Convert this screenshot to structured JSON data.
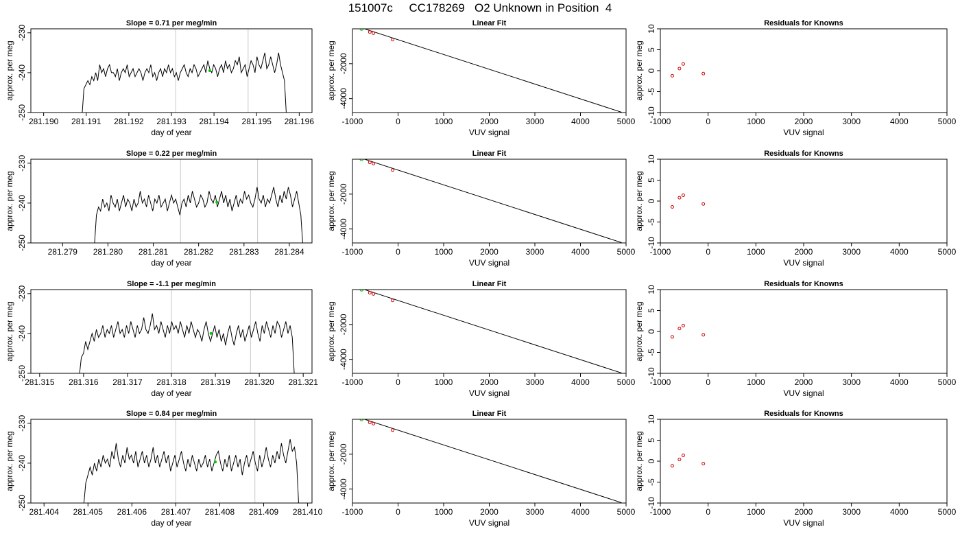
{
  "title": "151007c     CC178269   O2 Unknown in Position  4",
  "chart_data": [
    {
      "type": "line",
      "title": "Slope =  0.71  per meg/min",
      "xlabel": "day of year",
      "ylabel": "approx. per meg",
      "xlim": [
        281.1897,
        281.1963
      ],
      "ylim": [
        -250,
        -229
      ],
      "x_ticks": [
        "281.190",
        "281.191",
        "281.192",
        "281.193",
        "281.194",
        "281.195",
        "281.196"
      ],
      "y_ticks": [
        "-250",
        "-240",
        "-230"
      ],
      "x_start": 281.1909,
      "x_end": 281.1957,
      "vertical_lines": [
        281.1931,
        281.1948
      ],
      "marker": {
        "x": 281.1939,
        "y": -239.5,
        "color": "#00cc00"
      },
      "line_color": "#000000",
      "y": [
        -251,
        -244,
        -243,
        -242,
        -243,
        -241,
        -242,
        -240,
        -242,
        -238,
        -240,
        -239,
        -241,
        -239,
        -238,
        -240,
        -240,
        -241,
        -239,
        -242,
        -240,
        -239,
        -240,
        -238,
        -241,
        -240,
        -239,
        -241,
        -240,
        -239,
        -240,
        -242,
        -240,
        -239,
        -240,
        -238,
        -241,
        -240,
        -242,
        -240,
        -239,
        -241,
        -239,
        -240,
        -238,
        -240,
        -239,
        -241,
        -240,
        -242,
        -240,
        -239,
        -238,
        -240,
        -241,
        -239,
        -240,
        -238,
        -239,
        -241,
        -240,
        -239,
        -238,
        -240,
        -237,
        -239,
        -240,
        -238,
        -239,
        -241,
        -239,
        -238,
        -240,
        -237,
        -239,
        -238,
        -240,
        -239,
        -237,
        -238,
        -236,
        -240,
        -239,
        -238,
        -241,
        -239,
        -237,
        -238,
        -240,
        -236,
        -238,
        -239,
        -237,
        -235,
        -239,
        -238,
        -236,
        -238,
        -240,
        -238,
        -235,
        -238,
        -240,
        -242,
        -251
      ]
    },
    {
      "type": "line",
      "title": "Linear Fit",
      "xlabel": "VUV signal",
      "ylabel": "approx. per meg",
      "xlim": [
        -1000,
        5000
      ],
      "ylim": [
        -4800,
        0
      ],
      "x_ticks": [
        "-1000",
        "0",
        "1000",
        "2000",
        "3000",
        "4000",
        "5000"
      ],
      "y_ticks": [
        "-4000",
        "-2000"
      ],
      "fit_line": [
        [
          -830,
          80
        ],
        [
          4900,
          -4780
        ]
      ],
      "known_points": [
        [
          -620,
          -180
        ],
        [
          -540,
          -250
        ],
        [
          -120,
          -620
        ]
      ],
      "known_color": "#cc0000",
      "unknown_point": [
        -800,
        0
      ],
      "unknown_color": "#00cc00"
    },
    {
      "type": "scatter",
      "title": "Residuals for Knowns",
      "xlabel": "VUV signal",
      "ylabel": "approx. per meg",
      "xlim": [
        -1000,
        5000
      ],
      "ylim": [
        -10,
        10
      ],
      "x_ticks": [
        "-1000",
        "0",
        "1000",
        "2000",
        "3000",
        "4000",
        "5000"
      ],
      "y_ticks": [
        "-10",
        "-5",
        "0",
        "5",
        "10"
      ],
      "points": [
        [
          -750,
          -1.2
        ],
        [
          -600,
          0.5
        ],
        [
          -520,
          1.6
        ],
        [
          -100,
          -0.7
        ]
      ],
      "point_color": "#cc0000"
    },
    {
      "type": "line",
      "title": "Slope =  0.22  per meg/min",
      "xlabel": "day of year",
      "ylabel": "approx. per meg",
      "xlim": [
        281.2783,
        281.2845
      ],
      "ylim": [
        -250,
        -229
      ],
      "x_ticks": [
        "281.279",
        "281.280",
        "281.281",
        "281.282",
        "281.283",
        "281.284"
      ],
      "y_ticks": [
        "-250",
        "-240",
        "-230"
      ],
      "x_start": 281.2797,
      "x_end": 281.2843,
      "vertical_lines": [
        281.2816,
        281.2833
      ],
      "marker": {
        "x": 281.2824,
        "y": -239.8,
        "color": "#00cc00"
      },
      "line_color": "#000000",
      "y": [
        -251,
        -243,
        -241,
        -242,
        -239,
        -241,
        -240,
        -242,
        -238,
        -240,
        -241,
        -239,
        -242,
        -240,
        -238,
        -241,
        -239,
        -240,
        -242,
        -239,
        -241,
        -240,
        -237,
        -240,
        -239,
        -241,
        -238,
        -240,
        -242,
        -239,
        -240,
        -238,
        -241,
        -240,
        -239,
        -242,
        -240,
        -238,
        -240,
        -239,
        -241,
        -243,
        -240,
        -239,
        -241,
        -238,
        -240,
        -237,
        -239,
        -241,
        -240,
        -238,
        -239,
        -241,
        -240,
        -237,
        -239,
        -240,
        -238,
        -241,
        -239,
        -237,
        -240,
        -238,
        -241,
        -239,
        -242,
        -240,
        -238,
        -241,
        -239,
        -240,
        -237,
        -239,
        -238,
        -240,
        -241,
        -239,
        -236,
        -239,
        -240,
        -238,
        -241,
        -239,
        -240,
        -238,
        -236,
        -239,
        -241,
        -238,
        -240,
        -237,
        -239,
        -236,
        -238,
        -241,
        -239,
        -237,
        -240,
        -243,
        -251
      ]
    },
    {
      "type": "line",
      "title": "Linear Fit",
      "xlabel": "VUV signal",
      "ylabel": "approx. per meg",
      "xlim": [
        -1000,
        5000
      ],
      "ylim": [
        -4800,
        0
      ],
      "x_ticks": [
        "-1000",
        "0",
        "1000",
        "2000",
        "3000",
        "4000",
        "5000"
      ],
      "y_ticks": [
        "-4000",
        "-2000"
      ],
      "fit_line": [
        [
          -830,
          80
        ],
        [
          4900,
          -4780
        ]
      ],
      "known_points": [
        [
          -620,
          -180
        ],
        [
          -540,
          -250
        ],
        [
          -120,
          -620
        ]
      ],
      "known_color": "#cc0000",
      "unknown_point": [
        -800,
        0
      ],
      "unknown_color": "#00cc00"
    },
    {
      "type": "scatter",
      "title": "Residuals for Knowns",
      "xlabel": "VUV signal",
      "ylabel": "approx. per meg",
      "xlim": [
        -1000,
        5000
      ],
      "ylim": [
        -10,
        10
      ],
      "x_ticks": [
        "-1000",
        "0",
        "1000",
        "2000",
        "3000",
        "4000",
        "5000"
      ],
      "y_ticks": [
        "-10",
        "-5",
        "0",
        "5",
        "10"
      ],
      "points": [
        [
          -750,
          -1.4
        ],
        [
          -600,
          0.8
        ],
        [
          -520,
          1.4
        ],
        [
          -100,
          -0.7
        ]
      ],
      "point_color": "#cc0000"
    },
    {
      "type": "line",
      "title": "Slope =  -1.1  per meg/min",
      "xlabel": "day of year",
      "ylabel": "approx. per meg",
      "xlim": [
        281.3148,
        281.3212
      ],
      "ylim": [
        -250,
        -229
      ],
      "x_ticks": [
        "281.315",
        "281.316",
        "281.317",
        "281.318",
        "281.319",
        "281.320",
        "281.321"
      ],
      "y_ticks": [
        "-250",
        "-240",
        "-230"
      ],
      "x_start": 281.3159,
      "x_end": 281.3208,
      "vertical_lines": [
        281.318,
        281.3198
      ],
      "marker": {
        "x": 281.3189,
        "y": -240,
        "color": "#00cc00"
      },
      "line_color": "#000000",
      "y": [
        -251,
        -246,
        -245,
        -242,
        -244,
        -242,
        -240,
        -242,
        -239,
        -241,
        -240,
        -238,
        -241,
        -239,
        -240,
        -238,
        -241,
        -239,
        -237,
        -240,
        -239,
        -241,
        -238,
        -240,
        -237,
        -239,
        -241,
        -238,
        -240,
        -239,
        -236,
        -239,
        -240,
        -238,
        -235,
        -239,
        -238,
        -240,
        -237,
        -239,
        -241,
        -238,
        -240,
        -237,
        -239,
        -238,
        -240,
        -237,
        -239,
        -241,
        -238,
        -240,
        -237,
        -239,
        -241,
        -239,
        -240,
        -242,
        -239,
        -237,
        -240,
        -242,
        -240,
        -238,
        -241,
        -239,
        -242,
        -240,
        -243,
        -240,
        -238,
        -241,
        -243,
        -240,
        -238,
        -241,
        -239,
        -242,
        -240,
        -238,
        -241,
        -239,
        -237,
        -240,
        -242,
        -238,
        -240,
        -237,
        -239,
        -241,
        -238,
        -240,
        -237,
        -238,
        -241,
        -239,
        -237,
        -240,
        -238,
        -241,
        -251
      ]
    },
    {
      "type": "line",
      "title": "Linear Fit",
      "xlabel": "VUV signal",
      "ylabel": "approx. per meg",
      "xlim": [
        -1000,
        5000
      ],
      "ylim": [
        -4800,
        0
      ],
      "x_ticks": [
        "-1000",
        "0",
        "1000",
        "2000",
        "3000",
        "4000",
        "5000"
      ],
      "y_ticks": [
        "-4000",
        "-2000"
      ],
      "fit_line": [
        [
          -830,
          80
        ],
        [
          4900,
          -4780
        ]
      ],
      "known_points": [
        [
          -620,
          -180
        ],
        [
          -540,
          -250
        ],
        [
          -120,
          -620
        ]
      ],
      "known_color": "#cc0000",
      "unknown_point": [
        -800,
        0
      ],
      "unknown_color": "#00cc00"
    },
    {
      "type": "scatter",
      "title": "Residuals for Knowns",
      "xlabel": "VUV signal",
      "ylabel": "approx. per meg",
      "xlim": [
        -1000,
        5000
      ],
      "ylim": [
        -10,
        10
      ],
      "points": [
        [
          -750,
          -1.3
        ],
        [
          -600,
          0.7
        ],
        [
          -520,
          1.4
        ],
        [
          -100,
          -0.8
        ]
      ],
      "x_ticks": [
        "-1000",
        "0",
        "1000",
        "2000",
        "3000",
        "4000",
        "5000"
      ],
      "y_ticks": [
        "-10",
        "-5",
        "0",
        "5",
        "10"
      ],
      "point_color": "#cc0000"
    },
    {
      "type": "line",
      "title": "Slope =  0.84  per meg/min",
      "xlabel": "day of year",
      "ylabel": "approx. per meg",
      "xlim": [
        281.4037,
        281.4101
      ],
      "ylim": [
        -250,
        -229
      ],
      "x_ticks": [
        "281.404",
        "281.405",
        "281.406",
        "281.407",
        "281.408",
        "281.409",
        "281.410"
      ],
      "y_ticks": [
        "-250",
        "-240",
        "-230"
      ],
      "x_start": 281.4049,
      "x_end": 281.4098,
      "vertical_lines": [
        281.407,
        281.4088
      ],
      "marker": {
        "x": 281.4079,
        "y": -239.7,
        "color": "#00cc00"
      },
      "line_color": "#000000",
      "y": [
        -251,
        -245,
        -243,
        -241,
        -243,
        -240,
        -242,
        -239,
        -241,
        -238,
        -240,
        -239,
        -241,
        -237,
        -239,
        -235,
        -239,
        -241,
        -238,
        -240,
        -236,
        -239,
        -238,
        -240,
        -237,
        -241,
        -239,
        -237,
        -240,
        -238,
        -241,
        -239,
        -236,
        -240,
        -238,
        -241,
        -239,
        -237,
        -240,
        -238,
        -242,
        -240,
        -238,
        -241,
        -239,
        -237,
        -240,
        -242,
        -239,
        -241,
        -238,
        -240,
        -242,
        -239,
        -241,
        -240,
        -238,
        -241,
        -239,
        -242,
        -240,
        -238,
        -237,
        -240,
        -242,
        -239,
        -241,
        -238,
        -242,
        -240,
        -238,
        -241,
        -239,
        -243,
        -240,
        -238,
        -241,
        -239,
        -237,
        -240,
        -242,
        -238,
        -241,
        -239,
        -236,
        -239,
        -241,
        -238,
        -240,
        -237,
        -239,
        -235,
        -238,
        -240,
        -237,
        -234,
        -237,
        -236,
        -240,
        -251
      ]
    },
    {
      "type": "line",
      "title": "Linear Fit",
      "xlabel": "VUV signal",
      "ylabel": "approx. per meg",
      "xlim": [
        -1000,
        5000
      ],
      "ylim": [
        -4800,
        0
      ],
      "x_ticks": [
        "-1000",
        "0",
        "1000",
        "2000",
        "3000",
        "4000",
        "5000"
      ],
      "y_ticks": [
        "-4000",
        "-2000"
      ],
      "fit_line": [
        [
          -830,
          80
        ],
        [
          4900,
          -4780
        ]
      ],
      "known_points": [
        [
          -620,
          -180
        ],
        [
          -540,
          -250
        ],
        [
          -120,
          -620
        ]
      ],
      "known_color": "#cc0000",
      "unknown_point": [
        -800,
        0
      ],
      "unknown_color": "#00cc00"
    },
    {
      "type": "scatter",
      "title": "Residuals for Knowns",
      "xlabel": "VUV signal",
      "ylabel": "approx. per meg",
      "xlim": [
        -1000,
        5000
      ],
      "ylim": [
        -10,
        10
      ],
      "x_ticks": [
        "-1000",
        "0",
        "1000",
        "2000",
        "3000",
        "4000",
        "5000"
      ],
      "y_ticks": [
        "-10",
        "-5",
        "0",
        "5",
        "10"
      ],
      "points": [
        [
          -750,
          -1.1
        ],
        [
          -600,
          0.4
        ],
        [
          -520,
          1.4
        ],
        [
          -100,
          -0.6
        ]
      ],
      "point_color": "#cc0000"
    }
  ]
}
